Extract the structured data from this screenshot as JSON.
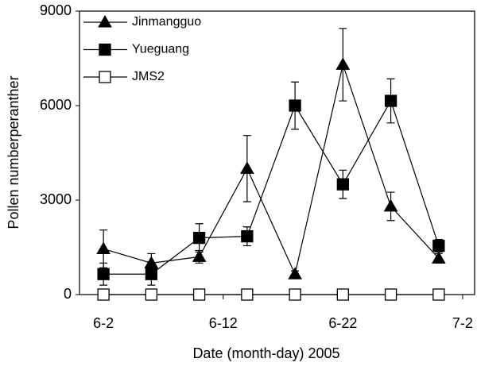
{
  "chart_data": {
    "type": "line",
    "x_label": "Date (month-day) 2005",
    "y_label": "Pollen numberperanther",
    "x": [
      2,
      6,
      10,
      14,
      18,
      22,
      26,
      30
    ],
    "xlim": [
      0,
      33
    ],
    "xticks": [
      {
        "value": 2,
        "label": "6-2"
      },
      {
        "value": 12,
        "label": "6-12"
      },
      {
        "value": 22,
        "label": "6-22"
      },
      {
        "value": 32,
        "label": "7-2"
      }
    ],
    "ylim": [
      0,
      9000
    ],
    "yticks": [
      0,
      3000,
      6000,
      9000
    ],
    "legend": "upper left",
    "series": [
      {
        "name": "Jinmangguo",
        "color": "#000000",
        "marker": "triangle-filled",
        "values": [
          1450,
          1000,
          1200,
          4000,
          650,
          7300,
          2800,
          1150
        ],
        "errors": [
          600,
          300,
          200,
          1050,
          100,
          1150,
          450,
          150
        ]
      },
      {
        "name": "Yueguang",
        "color": "#000000",
        "marker": "square-filled",
        "values": [
          650,
          650,
          1800,
          1850,
          6000,
          3500,
          6150,
          1550
        ],
        "errors": [
          350,
          350,
          450,
          300,
          750,
          450,
          700,
          200
        ]
      },
      {
        "name": "JMS2",
        "color": "#000000",
        "marker": "square-open",
        "values": [
          0,
          0,
          0,
          0,
          0,
          0,
          0,
          0
        ]
      }
    ]
  }
}
